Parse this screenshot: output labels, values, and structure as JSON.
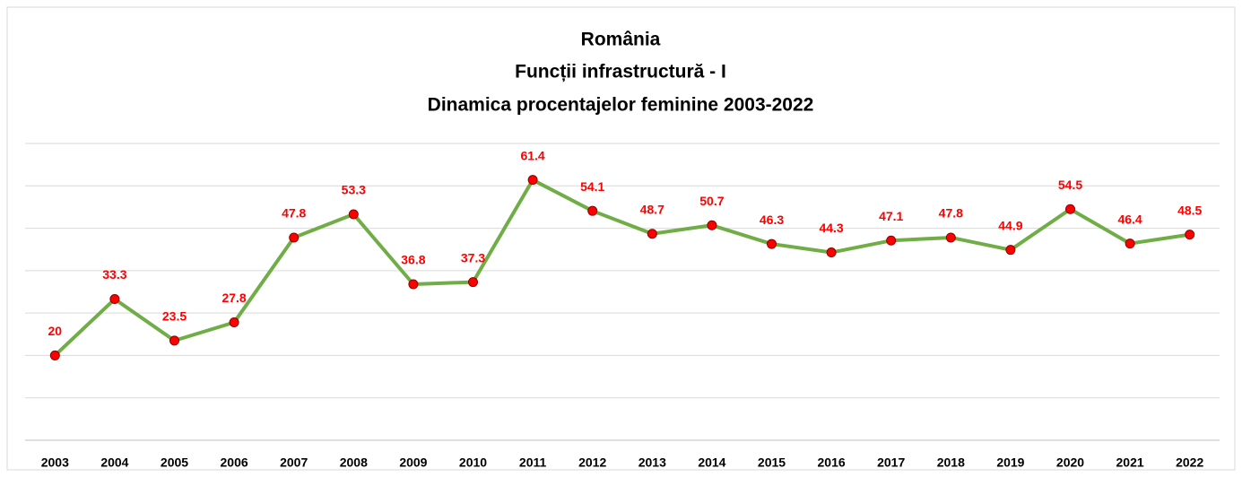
{
  "chart_data": {
    "type": "line",
    "title": [
      "România",
      "Funcții infrastructură - I",
      "Dinamica procentajelor feminine 2003-2022"
    ],
    "categories": [
      "2003",
      "2004",
      "2005",
      "2006",
      "2007",
      "2008",
      "2009",
      "2010",
      "2011",
      "2012",
      "2013",
      "2014",
      "2015",
      "2016",
      "2017",
      "2018",
      "2019",
      "2020",
      "2021",
      "2022"
    ],
    "values": [
      20,
      33.3,
      23.5,
      27.8,
      47.8,
      53.3,
      36.8,
      37.3,
      61.4,
      54.1,
      48.7,
      50.7,
      46.3,
      44.3,
      47.1,
      47.8,
      44.9,
      54.5,
      46.4,
      48.5
    ],
    "color": "#70ad47",
    "marker_color": "#ff0000",
    "label_color": "#ff0000",
    "ylim": [
      0,
      70
    ],
    "yticks": [
      0,
      10,
      20,
      30,
      40,
      50,
      60,
      70
    ],
    "grid": true
  }
}
